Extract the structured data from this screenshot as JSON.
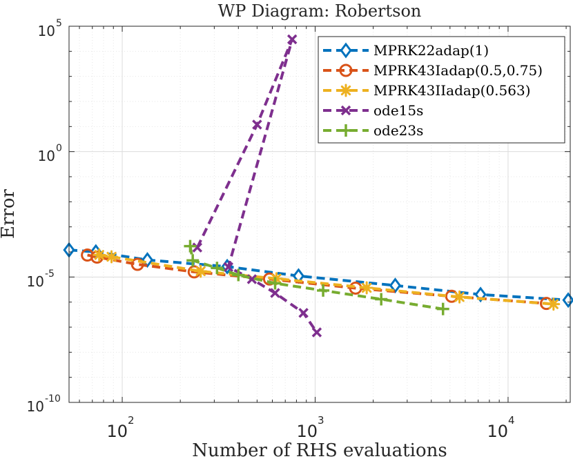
{
  "chart_data": {
    "type": "line",
    "title": "WP Diagram: Robertson",
    "xlabel": "Number of RHS evaluations",
    "ylabel": "Error",
    "xscale": "log",
    "yscale": "log",
    "xlim": [
      53,
      21000
    ],
    "ylim": [
      1e-10,
      100000
    ],
    "grid": true,
    "legend_position": "top-right",
    "x_ticks": [
      {
        "value": 100,
        "base": "10",
        "exp": "2"
      },
      {
        "value": 1000,
        "base": "10",
        "exp": "3"
      },
      {
        "value": 10000,
        "base": "10",
        "exp": "4"
      }
    ],
    "y_ticks": [
      {
        "value": 1e-10,
        "base": "10",
        "exp": "-10"
      },
      {
        "value": 1e-05,
        "base": "10",
        "exp": "-5"
      },
      {
        "value": 1,
        "base": "10",
        "exp": "0"
      },
      {
        "value": 100000,
        "base": "10",
        "exp": "5"
      }
    ],
    "series": [
      {
        "name": "MPRK22adap(1)",
        "color": "#0072bd",
        "marker": "diamond",
        "x": [
          53,
          73,
          135,
          350,
          820,
          2600,
          7200,
          20500
        ],
        "y": [
          0.00012,
          0.0001,
          4.8e-05,
          2.6e-05,
          1.1e-05,
          4.6e-06,
          2e-06,
          1.2e-06
        ]
      },
      {
        "name": "MPRK43Iadap(0.5,0.75)",
        "color": "#d95319",
        "marker": "circle",
        "x": [
          66,
          74,
          120,
          236,
          580,
          1620,
          5100,
          15800
        ],
        "y": [
          7.5e-05,
          6.2e-05,
          3.2e-05,
          1.6e-05,
          8.3e-06,
          3.6e-06,
          1.7e-06,
          8.8e-07
        ]
      },
      {
        "name": "MPRK43IIadap(0.563)",
        "color": "#edb120",
        "marker": "asterisk",
        "x": [
          76,
          88,
          255,
          630,
          1850,
          5600,
          17200
        ],
        "y": [
          7.6e-05,
          6.4e-05,
          1.7e-05,
          8.6e-06,
          3.7e-06,
          1.6e-06,
          8.3e-07
        ]
      },
      {
        "name": "ode15s",
        "color": "#7e2f8e",
        "marker": "x",
        "x": [
          245,
          500,
          760,
          355,
          470,
          620,
          870,
          1020
        ],
        "y": [
          0.00015,
          12,
          30000,
          2.5e-05,
          8.2e-06,
          2.3e-06,
          3.7e-07,
          6.2e-08
        ]
      },
      {
        "name": "ode23s",
        "color": "#77ac30",
        "marker": "plus",
        "x": [
          225,
          232,
          310,
          400,
          620,
          1100,
          2200,
          4600
        ],
        "y": [
          0.00017,
          4.6e-05,
          2.3e-05,
          1.2e-05,
          5.6e-06,
          2.9e-06,
          1.3e-06,
          5.3e-07
        ]
      }
    ]
  }
}
